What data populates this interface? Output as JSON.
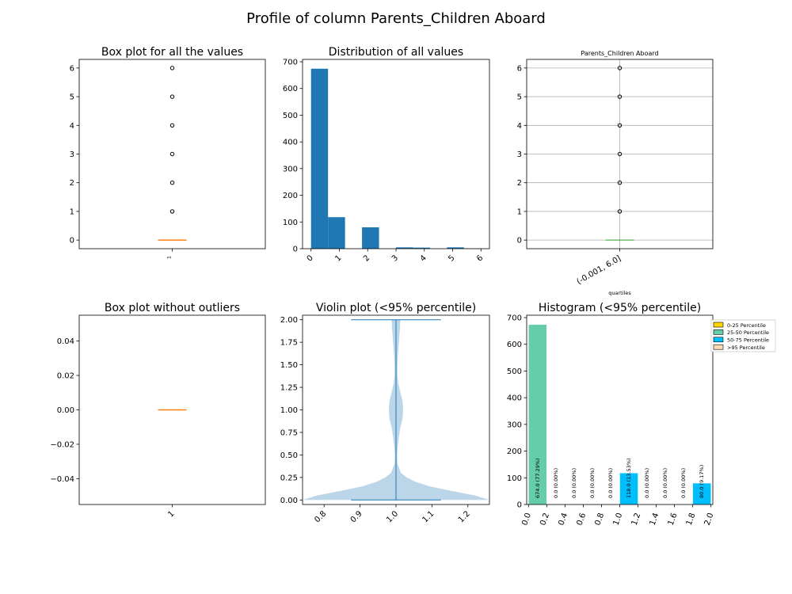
{
  "figure": {
    "title": "Profile of column  Parents_Children Aboard"
  },
  "chart_data": [
    {
      "type": "box",
      "title": "Box plot for all the values",
      "xticklabels": [
        "1"
      ],
      "ylim": [
        -0.3,
        6.3
      ],
      "yticks": [
        0,
        1,
        2,
        3,
        4,
        5,
        6
      ],
      "median": 0,
      "q1": 0,
      "q3": 0,
      "fliers": [
        1,
        2,
        3,
        4,
        5,
        6
      ]
    },
    {
      "type": "bar",
      "title": "Distribution of all values",
      "xlim": [
        -0.3,
        6.3
      ],
      "ylim": [
        0,
        700
      ],
      "xticks": [
        0,
        1,
        2,
        3,
        4,
        5,
        6
      ],
      "yticks": [
        0,
        100,
        200,
        300,
        400,
        500,
        600,
        700
      ],
      "bins": [
        {
          "x0": 0.0,
          "x1": 0.6,
          "count": 674
        },
        {
          "x0": 0.6,
          "x1": 1.2,
          "count": 118
        },
        {
          "x0": 1.8,
          "x1": 2.4,
          "count": 80
        },
        {
          "x0": 3.0,
          "x1": 3.6,
          "count": 5
        },
        {
          "x0": 3.6,
          "x1": 4.2,
          "count": 4
        },
        {
          "x0": 4.8,
          "x1": 5.4,
          "count": 5
        },
        {
          "x0": 5.4,
          "x1": 6.0,
          "count": 1
        }
      ]
    },
    {
      "type": "box",
      "title": "Parents_Children Aboard",
      "xlabel": "quartiles",
      "xticklabels": [
        "(-0.001, 6.0]"
      ],
      "ylim": [
        -0.3,
        6.3
      ],
      "yticks": [
        0,
        1,
        2,
        3,
        4,
        5,
        6
      ],
      "grid": true,
      "median": 0,
      "q1": 0,
      "q3": 0,
      "fliers": [
        1,
        2,
        3,
        4,
        5,
        6
      ]
    },
    {
      "type": "box",
      "title": "Box plot without outliers",
      "xticklabels": [
        "1"
      ],
      "ylim": [
        -0.055,
        0.055
      ],
      "yticks": [
        -0.04,
        -0.02,
        0.0,
        0.02,
        0.04
      ],
      "yticklabels": [
        "−0.04",
        "−0.02",
        "0.00",
        "0.02",
        "0.04"
      ],
      "median": 0
    },
    {
      "type": "violin",
      "title": "Violin plot (<95% percentile)",
      "xlim": [
        0.74,
        1.26
      ],
      "ylim": [
        -0.05,
        2.05
      ],
      "xticks": [
        0.8,
        0.9,
        1.0,
        1.1,
        1.2
      ],
      "yticks": [
        0.0,
        0.25,
        0.5,
        0.75,
        1.0,
        1.25,
        1.5,
        1.75,
        2.0
      ],
      "yticklabels": [
        "0.00",
        "0.25",
        "0.50",
        "0.75",
        "1.00",
        "1.25",
        "1.50",
        "1.75",
        "2.00"
      ],
      "position": 1.0,
      "min": 0,
      "max": 2,
      "cap_halfwidth": 0.125,
      "density_profile": [
        [
          0.0,
          0.26
        ],
        [
          0.05,
          0.22
        ],
        [
          0.1,
          0.155
        ],
        [
          0.15,
          0.095
        ],
        [
          0.2,
          0.055
        ],
        [
          0.25,
          0.03
        ],
        [
          0.3,
          0.014
        ],
        [
          0.4,
          0.004
        ],
        [
          0.5,
          0.003
        ],
        [
          0.6,
          0.005
        ],
        [
          0.7,
          0.008
        ],
        [
          0.8,
          0.012
        ],
        [
          0.9,
          0.018
        ],
        [
          1.0,
          0.02
        ],
        [
          1.1,
          0.018
        ],
        [
          1.2,
          0.012
        ],
        [
          1.3,
          0.006
        ],
        [
          1.4,
          0.004
        ],
        [
          1.5,
          0.004
        ],
        [
          1.6,
          0.005
        ],
        [
          1.7,
          0.007
        ],
        [
          1.8,
          0.009
        ],
        [
          1.9,
          0.011
        ],
        [
          2.0,
          0.012
        ]
      ]
    },
    {
      "type": "bar",
      "title": "Histogram (<95% percentile)",
      "xlim": [
        -0.02,
        2.02
      ],
      "ylim": [
        0,
        700
      ],
      "xticks": [
        0.0,
        0.2,
        0.4,
        0.6,
        0.8,
        1.0,
        1.2,
        1.4,
        1.6,
        1.8,
        2.0
      ],
      "xticklabels": [
        "0.0",
        "0.2",
        "0.4",
        "0.6",
        "0.8",
        "1.0",
        "1.2",
        "1.4",
        "1.6",
        "1.8",
        "2.0"
      ],
      "yticks": [
        0,
        100,
        200,
        300,
        400,
        500,
        600,
        700
      ],
      "bins": [
        {
          "x0": 0.0,
          "x1": 0.2,
          "count": 674,
          "label": "674.0  (77.29%)",
          "color": "#66cdaa"
        },
        {
          "x0": 0.2,
          "x1": 0.4,
          "count": 0,
          "label": "0.0  (0.00%)",
          "color": "#66cdaa"
        },
        {
          "x0": 0.4,
          "x1": 0.6,
          "count": 0,
          "label": "0.0  (0.00%)",
          "color": "#66cdaa"
        },
        {
          "x0": 0.6,
          "x1": 0.8,
          "count": 0,
          "label": "0.0  (0.00%)",
          "color": "#66cdaa"
        },
        {
          "x0": 0.8,
          "x1": 1.0,
          "count": 0,
          "label": "0.0  (0.00%)",
          "color": "#66cdaa"
        },
        {
          "x0": 1.0,
          "x1": 1.2,
          "count": 118,
          "label": "118.0  (13.53%)",
          "color": "#00bfff"
        },
        {
          "x0": 1.2,
          "x1": 1.4,
          "count": 0,
          "label": "0.0  (0.00%)",
          "color": "#00bfff"
        },
        {
          "x0": 1.4,
          "x1": 1.6,
          "count": 0,
          "label": "0.0  (0.00%)",
          "color": "#00bfff"
        },
        {
          "x0": 1.6,
          "x1": 1.8,
          "count": 0,
          "label": "0.0  (0.00%)",
          "color": "#00bfff"
        },
        {
          "x0": 1.8,
          "x1": 2.0,
          "count": 80,
          "label": "80.0  (9.17%)",
          "color": "#00bfff"
        }
      ],
      "legend": {
        "placement": "outside-right",
        "entries": [
          {
            "label": "0-25 Percentile",
            "color": "#ffd700"
          },
          {
            "label": "25-50 Percentile",
            "color": "#66cdaa"
          },
          {
            "label": "50-75 Percentile",
            "color": "#00bfff"
          },
          {
            "label": ">95 Percentile",
            "color": "#ffdab9"
          }
        ]
      }
    }
  ]
}
